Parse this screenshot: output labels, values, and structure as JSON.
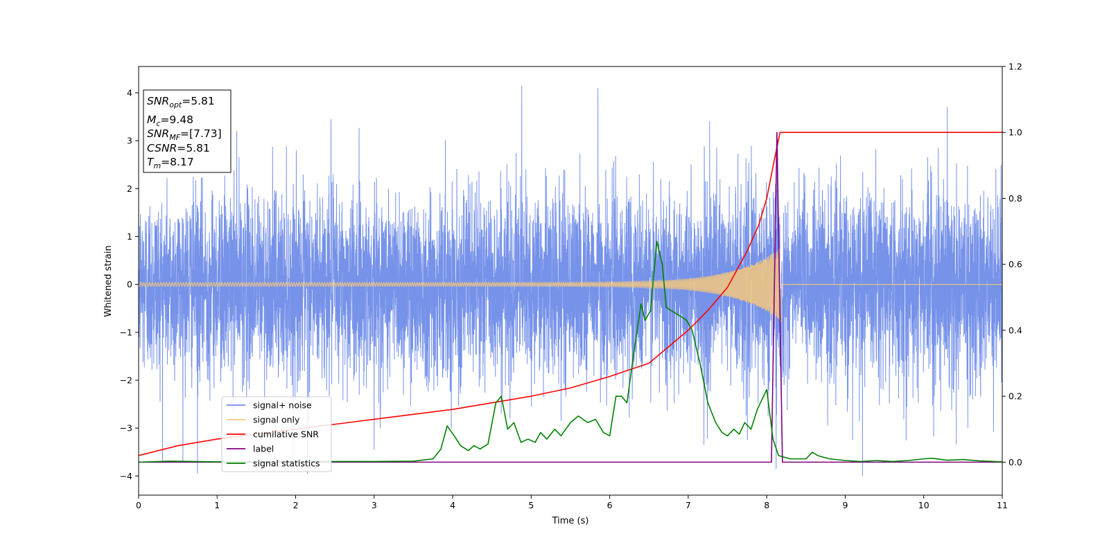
{
  "chart_data": {
    "type": "line",
    "xlabel": "Time (s)",
    "ylabel": "Whitened strain",
    "xlim": [
      0,
      11
    ],
    "ylim_left": [
      -4.4,
      4.55
    ],
    "ylim_right": [
      -0.1,
      1.2
    ],
    "x_ticks": [
      "0",
      "1",
      "2",
      "3",
      "4",
      "5",
      "6",
      "7",
      "8",
      "9",
      "10",
      "11"
    ],
    "y_left_ticks": [
      "−4",
      "−3",
      "−2",
      "−1",
      "0",
      "1",
      "2",
      "3",
      "4"
    ],
    "y_right_ticks": [
      "0.0",
      "0.2",
      "0.4",
      "0.6",
      "0.8",
      "1.0",
      "1.2"
    ],
    "grid": false,
    "legend_position": "lower-left",
    "annotation_box": {
      "lines": [
        {
          "label": "SNR",
          "sub": "opt",
          "value": "=5.81"
        },
        {
          "label": "M",
          "sub": "c",
          "value": "=9.48"
        },
        {
          "label": "SNR",
          "sub": "MF",
          "value": "=[7.73]"
        },
        {
          "label": "CSNR",
          "sub": "",
          "value": "=5.81"
        },
        {
          "label": "T",
          "sub": "m",
          "value": "=8.17"
        }
      ]
    },
    "noise": {
      "sigma": 0.95,
      "duration": 11,
      "color": "#6f8ce8"
    },
    "signal": {
      "merger_time": 8.17,
      "peak_amplitude": 0.75,
      "start_amplitude": 0.04,
      "color": "#f5c77e"
    },
    "series": [
      {
        "name": "signal+ noise",
        "color": "#6f8ce8",
        "axis": "left",
        "x": [
          0,
          0.75,
          1.25,
          2.15,
          2.45,
          3.0,
          4.88,
          5.85,
          7.2,
          8.12,
          9.22,
          10.3,
          11
        ],
        "y": [
          0.5,
          -3.95,
          3.2,
          -3.95,
          3.45,
          -3.45,
          4.15,
          4.1,
          -3.35,
          -3.85,
          -4.0,
          3.7,
          0.3
        ]
      },
      {
        "name": "signal only",
        "color": "#f5c77e",
        "axis": "left",
        "x": [
          0,
          2,
          4,
          6,
          7,
          7.5,
          8.0,
          8.17,
          8.2,
          11
        ],
        "y": [
          0.04,
          0.05,
          0.06,
          0.09,
          0.14,
          0.2,
          0.4,
          0.75,
          0,
          0
        ]
      },
      {
        "name": "cumilative SNR",
        "color": "#ff0000",
        "axis": "right",
        "x": [
          0,
          0.5,
          1,
          1.5,
          2,
          2.5,
          3,
          3.5,
          4,
          4.5,
          5,
          5.5,
          6,
          6.5,
          7,
          7.25,
          7.5,
          7.75,
          7.9,
          8.0,
          8.05,
          8.1,
          8.17,
          8.2,
          9,
          10,
          11
        ],
        "y": [
          0.02,
          0.05,
          0.07,
          0.085,
          0.1,
          0.115,
          0.13,
          0.145,
          0.16,
          0.18,
          0.2,
          0.225,
          0.26,
          0.3,
          0.4,
          0.46,
          0.53,
          0.64,
          0.72,
          0.8,
          0.86,
          0.92,
          1.0,
          1.0,
          1.0,
          1.0,
          1.0
        ]
      },
      {
        "name": "label",
        "color": "#800080",
        "axis": "right",
        "x": [
          0,
          8.06,
          8.13,
          8.2,
          11
        ],
        "y": [
          0.0,
          0.0,
          1.0,
          0.0,
          0.0
        ]
      },
      {
        "name": "signal statistics",
        "color": "#008000",
        "axis": "right",
        "x": [
          0,
          0.4,
          1,
          2,
          3,
          3.5,
          3.75,
          3.85,
          3.93,
          4.02,
          4.1,
          4.2,
          4.27,
          4.35,
          4.45,
          4.55,
          4.62,
          4.7,
          4.78,
          4.87,
          4.96,
          5.05,
          5.12,
          5.2,
          5.3,
          5.38,
          5.5,
          5.6,
          5.72,
          5.82,
          5.92,
          6.0,
          6.08,
          6.15,
          6.22,
          6.3,
          6.4,
          6.45,
          6.52,
          6.6,
          6.67,
          6.72,
          6.78,
          6.85,
          6.92,
          6.98,
          7.05,
          7.15,
          7.25,
          7.35,
          7.43,
          7.5,
          7.58,
          7.65,
          7.72,
          7.8,
          7.88,
          7.96,
          8.0,
          8.08,
          8.15,
          8.3,
          8.5,
          8.58,
          8.65,
          8.8,
          9.0,
          9.2,
          9.4,
          9.6,
          9.8,
          10.0,
          10.1,
          10.3,
          10.5,
          10.7,
          11.0
        ],
        "y": [
          0.0,
          0.003,
          0.001,
          0.002,
          0.002,
          0.003,
          0.01,
          0.04,
          0.11,
          0.08,
          0.05,
          0.035,
          0.05,
          0.04,
          0.055,
          0.18,
          0.2,
          0.1,
          0.12,
          0.06,
          0.07,
          0.06,
          0.09,
          0.07,
          0.1,
          0.08,
          0.12,
          0.14,
          0.12,
          0.13,
          0.09,
          0.08,
          0.2,
          0.2,
          0.18,
          0.32,
          0.48,
          0.43,
          0.46,
          0.67,
          0.6,
          0.47,
          0.46,
          0.45,
          0.44,
          0.43,
          0.4,
          0.3,
          0.18,
          0.12,
          0.09,
          0.08,
          0.1,
          0.085,
          0.12,
          0.1,
          0.16,
          0.2,
          0.22,
          0.07,
          0.02,
          0.01,
          0.01,
          0.03,
          0.02,
          0.01,
          0.005,
          0.002,
          0.005,
          0.002,
          0.005,
          0.01,
          0.012,
          0.006,
          0.008,
          0.004,
          0.001
        ]
      }
    ]
  }
}
